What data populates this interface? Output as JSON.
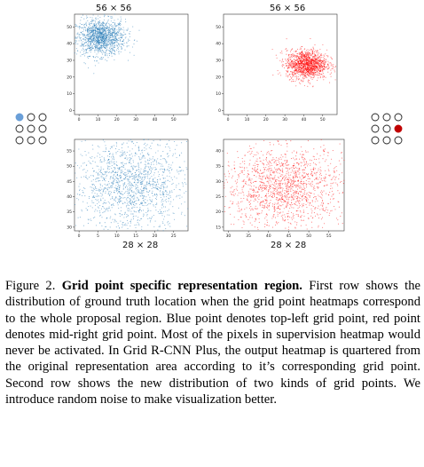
{
  "figure": {
    "panels": [
      {
        "title": "56 × 56",
        "title_pos": "top",
        "color": "#1f77b4",
        "center": [
          13,
          43
        ],
        "spread": [
          6,
          5
        ],
        "n": 1400,
        "xlim": [
          0,
          56
        ],
        "ylim": [
          0,
          56
        ],
        "xticks": [
          "0",
          "10",
          "20",
          "30",
          "40",
          "50"
        ],
        "yticks": [
          "0",
          "10",
          "20",
          "30",
          "40",
          "50"
        ]
      },
      {
        "title": "56 × 56",
        "title_pos": "top",
        "color": "#ff0000",
        "center": [
          41,
          28
        ],
        "spread": [
          5,
          4
        ],
        "n": 1400,
        "xlim": [
          0,
          56
        ],
        "ylim": [
          0,
          56
        ],
        "xticks": [
          "0",
          "10",
          "20",
          "30",
          "40",
          "50"
        ],
        "yticks": [
          "0",
          "10",
          "20",
          "30",
          "40",
          "50"
        ]
      },
      {
        "title": "28 × 28",
        "title_pos": "bottom",
        "color": "#1f77b4",
        "center": [
          14,
          42
        ],
        "spread": [
          7,
          7
        ],
        "n": 1600,
        "xlim": [
          0,
          28
        ],
        "ylim": [
          28,
          56
        ],
        "xticks": [
          "0",
          "5",
          "10",
          "15",
          "20",
          "25"
        ],
        "yticks": [
          "30",
          "35",
          "40",
          "45",
          "50",
          "55"
        ]
      },
      {
        "title": "28 × 28",
        "title_pos": "bottom",
        "color": "#ff0000",
        "center": [
          42,
          28
        ],
        "spread": [
          7,
          6
        ],
        "n": 1600,
        "xlim": [
          28,
          56
        ],
        "ylim": [
          15,
          42
        ],
        "xticks": [
          "30",
          "35",
          "40",
          "45",
          "50",
          "55"
        ],
        "yticks": [
          "15",
          "20",
          "25",
          "30",
          "35",
          "40"
        ]
      }
    ],
    "grid_icons": [
      {
        "highlight": [
          0,
          0
        ],
        "color": "#6a9fd8"
      },
      {
        "highlight": [
          1,
          2
        ],
        "color": "#c00000"
      }
    ]
  },
  "caption": {
    "label": "Figure 2.",
    "title": "Grid point specific representation region.",
    "text": "First row shows the distribution of ground truth location when the grid point heatmaps correspond to the whole proposal region. Blue point denotes top-left grid point, red point denotes mid-right grid point. Most of the pixels in supervision heatmap would never be activated. In Grid R-CNN Plus, the output heatmap is quartered from the original representation area according to it’s corresponding grid point. Second row shows the new distribution of two kinds of grid points. We introduce random noise to make visualization better."
  }
}
